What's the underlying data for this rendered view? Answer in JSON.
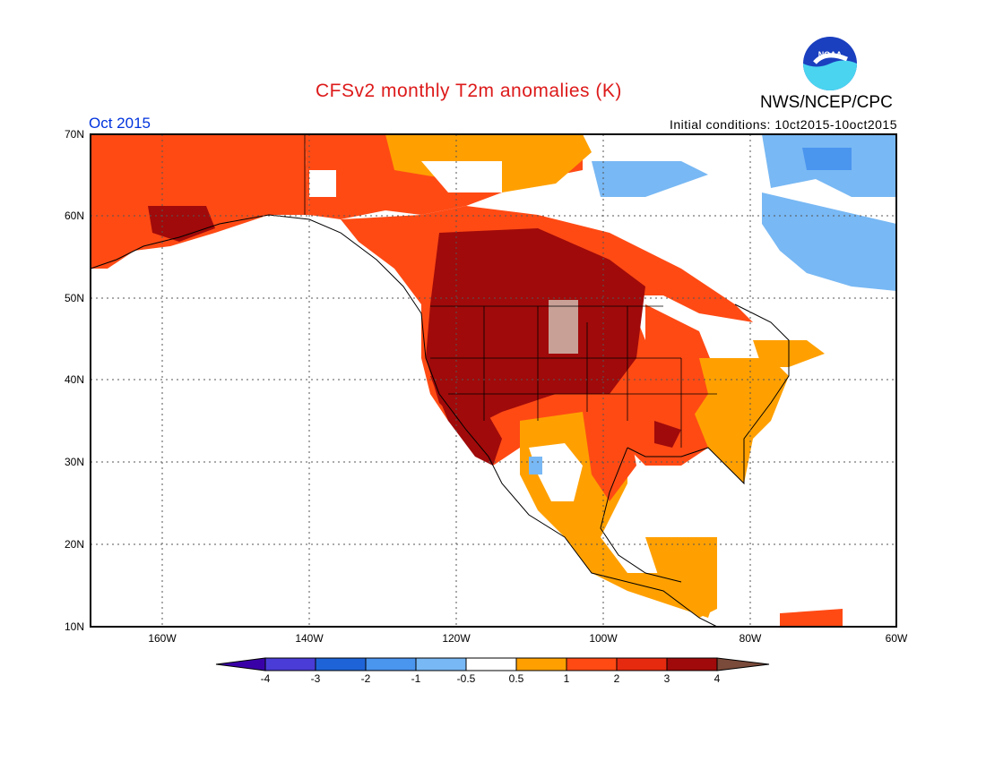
{
  "title": "CFSv2 monthly T2m anomalies (K)",
  "agency": "NWS/NCEP/CPC",
  "logo_text": "NOAA",
  "period": "Oct 2015",
  "initial_conditions": "Initial conditions: 10ct2015-10oct2015",
  "colors": {
    "title": "#dd1a1a",
    "period": "#0033dd",
    "neg4": "#3a00a8",
    "neg3": "#4a3cd6",
    "neg2": "#1e64d8",
    "neg1": "#4a95ee",
    "neg05": "#78b8f4",
    "zero": "#ffffff",
    "pos05": "#ffa000",
    "pos1": "#ff4a14",
    "pos2": "#e62a10",
    "pos3": "#a00a0a",
    "pos4": "#c8a096",
    "pos5": "#7a4a3a"
  },
  "axes": {
    "lat_labels": [
      "70N",
      "60N",
      "50N",
      "40N",
      "30N",
      "20N",
      "10N"
    ],
    "lon_labels": [
      "160W",
      "140W",
      "120W",
      "100W",
      "80W",
      "60W"
    ]
  },
  "legend": {
    "labels": [
      "-4",
      "-3",
      "-2",
      "-1",
      "-0.5",
      "0.5",
      "1",
      "2",
      "3",
      "4"
    ]
  }
}
